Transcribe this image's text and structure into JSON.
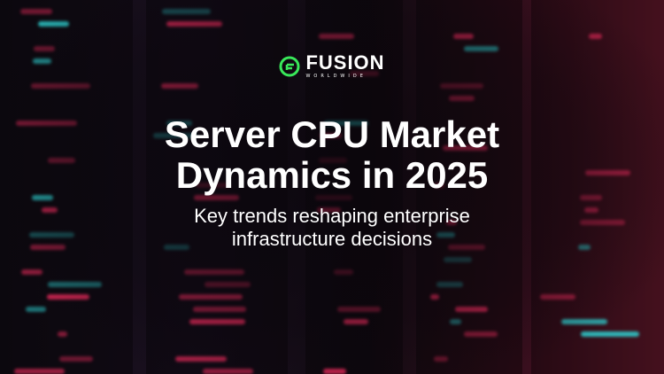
{
  "logo": {
    "name": "FUSION",
    "tagline": "WORLDWIDE",
    "accent": "#39e85a"
  },
  "title_line1": "Server CPU Market",
  "title_line2": "Dynamics in 2025",
  "subtitle_line1": "Key trends reshaping enterprise",
  "subtitle_line2": "infrastructure decisions",
  "colors": {
    "led_red": "#ff2e63",
    "led_cyan": "#2fd6d6",
    "background": "#140c14"
  }
}
